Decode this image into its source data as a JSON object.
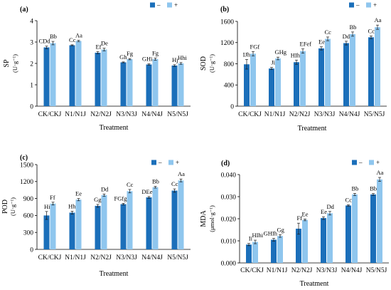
{
  "chart_data": [
    {
      "panel": "(a)",
      "type": "bar",
      "ylabel": "SP",
      "yunit": "(U·g⁻¹)",
      "xlabel": "Treatment",
      "categories": [
        "CK/CKJ",
        "N1/N1J",
        "N2/N2J",
        "N3/N3J",
        "N4/N4J",
        "N5/N5J"
      ],
      "ylim": [
        0,
        4
      ],
      "yticks": [
        "0",
        "1",
        "2",
        "3",
        "4"
      ],
      "grid": false,
      "legend_position": "top-right",
      "series": [
        {
          "name": "–",
          "color": "#1b6fba",
          "values": [
            2.75,
            2.85,
            2.5,
            2.05,
            1.95,
            1.9
          ],
          "errors": [
            0.06,
            0.02,
            0.05,
            0.02,
            0.03,
            0.04
          ],
          "letters": [
            "CDd",
            "Cc",
            "Ef",
            "Gh",
            "GHi",
            "Hj"
          ]
        },
        {
          "name": "+",
          "color": "#8fc6ee",
          "values": [
            2.95,
            3.05,
            2.65,
            2.2,
            2.2,
            2.0
          ],
          "errors": [
            0.08,
            0.03,
            0.06,
            0.03,
            0.05,
            0.04
          ],
          "letters": [
            "Bb",
            "Aa",
            "De",
            "Fg",
            "Fg",
            "Hhi"
          ]
        }
      ]
    },
    {
      "panel": "(b)",
      "type": "bar",
      "ylabel": "SOD",
      "yunit": "(U·g⁻¹)",
      "xlabel": "Treatment",
      "categories": [
        "CK/CKJ",
        "N1/N1J",
        "N2/N2J",
        "N3/N3J",
        "N4/N4J",
        "N5/N5J"
      ],
      "ylim": [
        0,
        1600
      ],
      "yticks": [
        "0",
        "400",
        "800",
        "1200",
        "1600"
      ],
      "grid": false,
      "legend_position": "top-right",
      "series": [
        {
          "name": "–",
          "color": "#1b6fba",
          "values": [
            790,
            710,
            830,
            1090,
            1190,
            1300
          ],
          "errors": [
            90,
            20,
            40,
            30,
            35,
            25
          ],
          "letters": [
            "IJh",
            "Ji",
            "HIh",
            "Ee",
            "Dd",
            "Cc"
          ]
        },
        {
          "name": "+",
          "color": "#8fc6ee",
          "values": [
            990,
            900,
            1040,
            1270,
            1360,
            1490
          ],
          "errors": [
            40,
            25,
            40,
            35,
            40,
            40
          ],
          "letters": [
            "FGf",
            "GHg",
            "EFef",
            "Cc",
            "Bb",
            "Aa"
          ]
        }
      ]
    },
    {
      "panel": "(c)",
      "type": "bar",
      "ylabel": "POD",
      "yunit": "(U·g⁻¹)",
      "xlabel": "Treatment",
      "categories": [
        "CK/CKJ",
        "N1/N1J",
        "N2/N2J",
        "N3/N3J",
        "N4/N4J",
        "N5/N5J"
      ],
      "ylim": [
        0,
        1500
      ],
      "yticks": [
        "0",
        "300",
        "600",
        "900",
        "1200",
        "1500"
      ],
      "grid": false,
      "legend_position": "top-right",
      "series": [
        {
          "name": "–",
          "color": "#1b6fba",
          "values": [
            600,
            650,
            770,
            800,
            920,
            1040
          ],
          "errors": [
            70,
            25,
            25,
            15,
            15,
            30
          ],
          "letters": [
            "Hi",
            "Hh",
            "Gg",
            "FGfg",
            "DEe",
            "Cc"
          ]
        },
        {
          "name": "+",
          "color": "#8fc6ee",
          "values": [
            810,
            880,
            960,
            1030,
            1100,
            1220
          ],
          "errors": [
            25,
            20,
            20,
            30,
            15,
            25
          ],
          "letters": [
            "Ff",
            "Ee",
            "Dd",
            "Cc",
            "Bb",
            "Aa"
          ]
        }
      ]
    },
    {
      "panel": "(d)",
      "type": "bar",
      "ylabel": "MDA",
      "yunit": "(μmol·g⁻¹)",
      "xlabel": "Treatment",
      "categories": [
        "CK/CKJ",
        "N1/N1J",
        "N2/N2J",
        "N3/N3J",
        "N4/N4J",
        "N5/N5J"
      ],
      "ylim": [
        0,
        0.04
      ],
      "yticks": [
        "0.000",
        "0.010",
        "0.020",
        "0.030",
        "0.040"
      ],
      "grid": false,
      "legend_position": "top-right",
      "series": [
        {
          "name": "–",
          "color": "#1b6fba",
          "values": [
            0.0083,
            0.0105,
            0.0155,
            0.0203,
            0.026,
            0.031
          ],
          "errors": [
            0.0005,
            0.0006,
            0.0025,
            0.0006,
            0.0003,
            0.0004
          ],
          "letters": [
            "Ii",
            "GHIh",
            "Ff",
            "Ee",
            "Cc",
            "Bb"
          ]
        },
        {
          "name": "+",
          "color": "#8fc6ee",
          "values": [
            0.0095,
            0.0122,
            0.0195,
            0.0225,
            0.031,
            0.0378
          ],
          "errors": [
            0.0008,
            0.0006,
            0.0004,
            0.0008,
            0.0005,
            0.0009
          ],
          "letters": [
            "HIhi",
            "Gg",
            "Ee",
            "Dd",
            "Bb",
            "Aa"
          ]
        }
      ]
    }
  ]
}
